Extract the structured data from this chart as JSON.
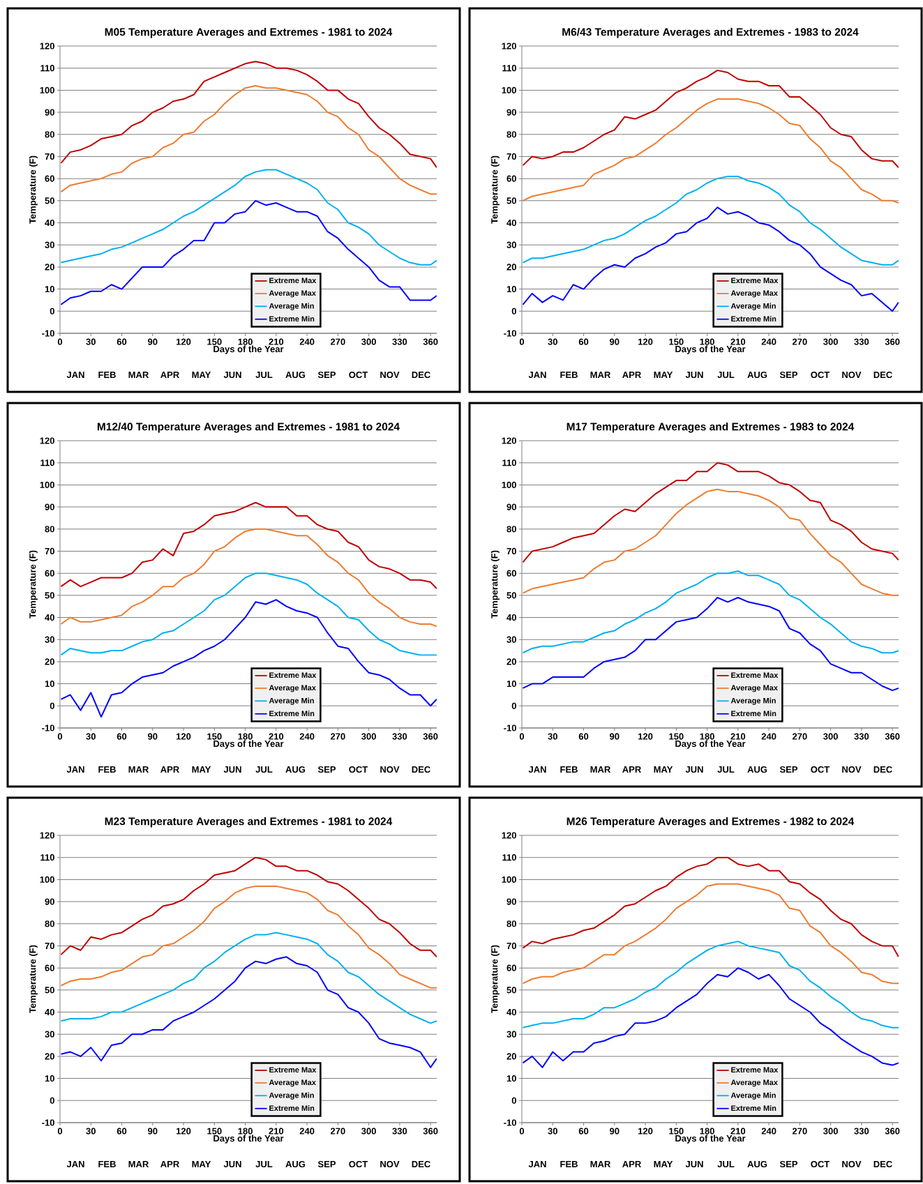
{
  "chart_data": [
    {
      "type": "line",
      "title": "M05 Temperature Averages and Extremes - 1981 to 2024",
      "xlabel": "Days of the Year",
      "ylabel": "Temperature (F)",
      "x": [
        1,
        10,
        20,
        30,
        40,
        50,
        60,
        70,
        80,
        90,
        100,
        110,
        120,
        130,
        140,
        150,
        160,
        170,
        180,
        190,
        200,
        210,
        220,
        230,
        240,
        250,
        260,
        270,
        280,
        290,
        300,
        310,
        320,
        330,
        340,
        350,
        360,
        366
      ],
      "series": [
        {
          "name": "Extreme Max",
          "color": "#c00000",
          "values": [
            67,
            72,
            73,
            75,
            78,
            79,
            80,
            84,
            86,
            90,
            92,
            95,
            96,
            98,
            104,
            106,
            108,
            110,
            112,
            113,
            112,
            110,
            110,
            109,
            107,
            104,
            100,
            100,
            96,
            94,
            88,
            83,
            80,
            76,
            71,
            70,
            69,
            65
          ]
        },
        {
          "name": "Average Max",
          "color": "#ed7d31",
          "values": [
            54,
            57,
            58,
            59,
            60,
            62,
            63,
            67,
            69,
            70,
            74,
            76,
            80,
            81,
            86,
            89,
            94,
            98,
            101,
            102,
            101,
            101,
            100,
            99,
            98,
            95,
            90,
            88,
            83,
            80,
            73,
            70,
            65,
            60,
            57,
            55,
            53,
            53
          ]
        },
        {
          "name": "Average Min",
          "color": "#00b0f0",
          "values": [
            22,
            23,
            24,
            25,
            26,
            28,
            29,
            31,
            33,
            35,
            37,
            40,
            43,
            45,
            48,
            51,
            54,
            57,
            61,
            63,
            64,
            64,
            62,
            60,
            58,
            55,
            49,
            46,
            40,
            38,
            35,
            30,
            27,
            24,
            22,
            21,
            21,
            23
          ]
        },
        {
          "name": "Extreme Min",
          "color": "#0000ff",
          "values": [
            3,
            6,
            7,
            9,
            9,
            12,
            10,
            15,
            20,
            20,
            20,
            25,
            28,
            32,
            32,
            40,
            40,
            44,
            45,
            50,
            48,
            49,
            47,
            45,
            45,
            43,
            36,
            33,
            28,
            24,
            20,
            14,
            11,
            11,
            5,
            5,
            5,
            7
          ]
        }
      ],
      "xlim": [
        0,
        366
      ],
      "xticks": [
        0,
        30,
        60,
        90,
        120,
        150,
        180,
        210,
        240,
        270,
        300,
        330,
        360
      ],
      "ylim": [
        -10,
        120
      ],
      "yticks": [
        -10,
        0,
        10,
        20,
        30,
        40,
        50,
        60,
        70,
        80,
        90,
        100,
        110,
        120
      ],
      "annotations": [
        "JAN",
        "FEB",
        "MAR",
        "APR",
        "MAY",
        "JUN",
        "JUL",
        "AUG",
        "SEP",
        "OCT",
        "NOV",
        "DEC"
      ],
      "grid": "y",
      "legend": "bottom",
      "line_style": "solid"
    },
    {
      "type": "line",
      "title": "M6/43 Temperature Averages and Extremes - 1983 to 2024",
      "xlabel": "Days of the Year",
      "ylabel": "Temperature (F)",
      "x": [
        1,
        10,
        20,
        30,
        40,
        50,
        60,
        70,
        80,
        90,
        100,
        110,
        120,
        130,
        140,
        150,
        160,
        170,
        180,
        190,
        200,
        210,
        220,
        230,
        240,
        250,
        260,
        270,
        280,
        290,
        300,
        310,
        320,
        330,
        340,
        350,
        360,
        366
      ],
      "series": [
        {
          "name": "Extreme Max",
          "color": "#c00000",
          "values": [
            66,
            70,
            69,
            70,
            72,
            72,
            74,
            77,
            80,
            82,
            88,
            87,
            89,
            91,
            95,
            99,
            101,
            104,
            106,
            109,
            108,
            105,
            104,
            104,
            102,
            102,
            97,
            97,
            93,
            89,
            83,
            80,
            79,
            73,
            69,
            68,
            68,
            65
          ]
        },
        {
          "name": "Average Max",
          "color": "#ed7d31",
          "values": [
            50,
            52,
            53,
            54,
            55,
            56,
            57,
            62,
            64,
            66,
            69,
            70,
            73,
            76,
            80,
            83,
            87,
            91,
            94,
            96,
            96,
            96,
            95,
            94,
            92,
            89,
            85,
            84,
            78,
            74,
            68,
            65,
            60,
            55,
            53,
            50,
            50,
            49
          ]
        },
        {
          "name": "Average Min",
          "color": "#00b0f0",
          "values": [
            22,
            24,
            24,
            25,
            26,
            27,
            28,
            30,
            32,
            33,
            35,
            38,
            41,
            43,
            46,
            49,
            53,
            55,
            58,
            60,
            61,
            61,
            59,
            58,
            56,
            53,
            48,
            45,
            40,
            37,
            33,
            29,
            26,
            23,
            22,
            21,
            21,
            23
          ]
        },
        {
          "name": "Extreme Min",
          "color": "#0000ff",
          "values": [
            3,
            8,
            4,
            7,
            5,
            12,
            10,
            15,
            19,
            21,
            20,
            24,
            26,
            29,
            31,
            35,
            36,
            40,
            42,
            47,
            44,
            45,
            43,
            40,
            39,
            36,
            32,
            30,
            26,
            20,
            17,
            14,
            12,
            7,
            8,
            4,
            0,
            4
          ]
        }
      ],
      "xlim": [
        0,
        366
      ],
      "xticks": [
        0,
        30,
        60,
        90,
        120,
        150,
        180,
        210,
        240,
        270,
        300,
        330,
        360
      ],
      "ylim": [
        -10,
        120
      ],
      "yticks": [
        -10,
        0,
        10,
        20,
        30,
        40,
        50,
        60,
        70,
        80,
        90,
        100,
        110,
        120
      ],
      "annotations": [
        "JAN",
        "FEB",
        "MAR",
        "APR",
        "MAY",
        "JUN",
        "JUL",
        "AUG",
        "SEP",
        "OCT",
        "NOV",
        "DEC"
      ],
      "grid": "y",
      "legend": "bottom",
      "line_style": "solid"
    },
    {
      "type": "line",
      "title": "M12/40 Temperature Averages and Extremes - 1981 to 2024",
      "xlabel": "Days of the Year",
      "ylabel": "Temperature (F)",
      "x": [
        1,
        10,
        20,
        30,
        40,
        50,
        60,
        70,
        80,
        90,
        100,
        110,
        120,
        130,
        140,
        150,
        160,
        170,
        180,
        190,
        200,
        210,
        220,
        230,
        240,
        250,
        260,
        270,
        280,
        290,
        300,
        310,
        320,
        330,
        340,
        350,
        360,
        366
      ],
      "series": [
        {
          "name": "Extreme Max",
          "color": "#c00000",
          "values": [
            54,
            57,
            54,
            56,
            58,
            58,
            58,
            60,
            65,
            66,
            71,
            68,
            78,
            79,
            82,
            86,
            87,
            88,
            90,
            92,
            90,
            90,
            90,
            86,
            86,
            82,
            80,
            79,
            74,
            72,
            66,
            63,
            62,
            60,
            57,
            57,
            56,
            53
          ]
        },
        {
          "name": "Average Max",
          "color": "#ed7d31",
          "values": [
            37,
            40,
            38,
            38,
            39,
            40,
            41,
            45,
            47,
            50,
            54,
            54,
            58,
            60,
            64,
            70,
            72,
            76,
            79,
            80,
            80,
            79,
            78,
            77,
            77,
            73,
            68,
            65,
            60,
            57,
            51,
            47,
            44,
            40,
            38,
            37,
            37,
            36
          ]
        },
        {
          "name": "Average Min",
          "color": "#00b0f0",
          "values": [
            23,
            26,
            25,
            24,
            24,
            25,
            25,
            27,
            29,
            30,
            33,
            34,
            37,
            40,
            43,
            48,
            50,
            54,
            58,
            60,
            60,
            59,
            58,
            57,
            55,
            51,
            48,
            45,
            40,
            39,
            34,
            30,
            28,
            25,
            24,
            23,
            23,
            23
          ]
        },
        {
          "name": "Extreme Min",
          "color": "#0000ff",
          "values": [
            3,
            5,
            -2,
            6,
            -5,
            5,
            6,
            10,
            13,
            14,
            15,
            18,
            20,
            22,
            25,
            27,
            30,
            35,
            40,
            47,
            46,
            48,
            45,
            43,
            42,
            40,
            33,
            27,
            26,
            20,
            15,
            14,
            12,
            8,
            5,
            5,
            0,
            3
          ]
        }
      ],
      "xlim": [
        0,
        366
      ],
      "xticks": [
        0,
        30,
        60,
        90,
        120,
        150,
        180,
        210,
        240,
        270,
        300,
        330,
        360
      ],
      "ylim": [
        -10,
        120
      ],
      "yticks": [
        -10,
        0,
        10,
        20,
        30,
        40,
        50,
        60,
        70,
        80,
        90,
        100,
        110,
        120
      ],
      "annotations": [
        "JAN",
        "FEB",
        "MAR",
        "APR",
        "MAY",
        "JUN",
        "JUL",
        "AUG",
        "SEP",
        "OCT",
        "NOV",
        "DEC"
      ],
      "grid": "y",
      "legend": "bottom",
      "line_style": "solid"
    },
    {
      "type": "line",
      "title": "M17 Temperature Averages and Extremes - 1983 to 2024",
      "xlabel": "Days of the Year",
      "ylabel": "Temperature (F)",
      "x": [
        1,
        10,
        20,
        30,
        40,
        50,
        60,
        70,
        80,
        90,
        100,
        110,
        120,
        130,
        140,
        150,
        160,
        170,
        180,
        190,
        200,
        210,
        220,
        230,
        240,
        250,
        260,
        270,
        280,
        290,
        300,
        310,
        320,
        330,
        340,
        350,
        360,
        366
      ],
      "series": [
        {
          "name": "Extreme Max",
          "color": "#c00000",
          "values": [
            65,
            70,
            71,
            72,
            74,
            76,
            77,
            78,
            82,
            86,
            89,
            88,
            92,
            96,
            99,
            102,
            102,
            106,
            106,
            110,
            109,
            106,
            106,
            106,
            104,
            101,
            100,
            97,
            93,
            92,
            84,
            82,
            79,
            74,
            71,
            70,
            69,
            66
          ]
        },
        {
          "name": "Average Max",
          "color": "#ed7d31",
          "values": [
            51,
            53,
            54,
            55,
            56,
            57,
            58,
            62,
            65,
            66,
            70,
            71,
            74,
            77,
            82,
            87,
            91,
            94,
            97,
            98,
            97,
            97,
            96,
            95,
            93,
            90,
            85,
            84,
            78,
            73,
            68,
            65,
            60,
            55,
            53,
            51,
            50,
            50
          ]
        },
        {
          "name": "Average Min",
          "color": "#00b0f0",
          "values": [
            24,
            26,
            27,
            27,
            28,
            29,
            29,
            31,
            33,
            34,
            37,
            39,
            42,
            44,
            47,
            51,
            53,
            55,
            58,
            60,
            60,
            61,
            59,
            59,
            57,
            55,
            50,
            48,
            44,
            40,
            37,
            33,
            29,
            27,
            26,
            24,
            24,
            25
          ]
        },
        {
          "name": "Extreme Min",
          "color": "#0000ff",
          "values": [
            8,
            10,
            10,
            13,
            13,
            13,
            13,
            17,
            20,
            21,
            22,
            25,
            30,
            30,
            34,
            38,
            39,
            40,
            44,
            49,
            47,
            49,
            47,
            46,
            45,
            43,
            35,
            33,
            28,
            25,
            19,
            17,
            15,
            15,
            12,
            9,
            7,
            8
          ]
        }
      ],
      "xlim": [
        0,
        366
      ],
      "xticks": [
        0,
        30,
        60,
        90,
        120,
        150,
        180,
        210,
        240,
        270,
        300,
        330,
        360
      ],
      "ylim": [
        -10,
        120
      ],
      "yticks": [
        -10,
        0,
        10,
        20,
        30,
        40,
        50,
        60,
        70,
        80,
        90,
        100,
        110,
        120
      ],
      "annotations": [
        "JAN",
        "FEB",
        "MAR",
        "APR",
        "MAY",
        "JUN",
        "JUL",
        "AUG",
        "SEP",
        "OCT",
        "NOV",
        "DEC"
      ],
      "grid": "y",
      "legend": "bottom",
      "line_style": "solid"
    },
    {
      "type": "line",
      "title": "M23 Temperature Averages and Extremes - 1981 to 2024",
      "xlabel": "Days of the Year",
      "ylabel": "Temperature (F)",
      "x": [
        1,
        10,
        20,
        30,
        40,
        50,
        60,
        70,
        80,
        90,
        100,
        110,
        120,
        130,
        140,
        150,
        160,
        170,
        180,
        190,
        200,
        210,
        220,
        230,
        240,
        250,
        260,
        270,
        280,
        290,
        300,
        310,
        320,
        330,
        340,
        350,
        360,
        366
      ],
      "series": [
        {
          "name": "Extreme Max",
          "color": "#c00000",
          "values": [
            66,
            70,
            68,
            74,
            73,
            75,
            76,
            79,
            82,
            84,
            88,
            89,
            91,
            95,
            98,
            102,
            103,
            104,
            107,
            110,
            109,
            106,
            106,
            104,
            104,
            102,
            99,
            98,
            95,
            91,
            87,
            82,
            80,
            76,
            71,
            68,
            68,
            65
          ]
        },
        {
          "name": "Average Max",
          "color": "#ed7d31",
          "values": [
            52,
            54,
            55,
            55,
            56,
            58,
            59,
            62,
            65,
            66,
            70,
            71,
            74,
            77,
            81,
            87,
            90,
            94,
            96,
            97,
            97,
            97,
            96,
            95,
            94,
            91,
            86,
            84,
            79,
            75,
            69,
            66,
            62,
            57,
            55,
            53,
            51,
            51
          ]
        },
        {
          "name": "Average Min",
          "color": "#00b0f0",
          "values": [
            36,
            37,
            37,
            37,
            38,
            40,
            40,
            42,
            44,
            46,
            48,
            50,
            53,
            55,
            60,
            63,
            67,
            70,
            73,
            75,
            75,
            76,
            75,
            74,
            73,
            71,
            66,
            63,
            58,
            56,
            52,
            48,
            45,
            42,
            39,
            37,
            35,
            36
          ]
        },
        {
          "name": "Extreme Min",
          "color": "#0000ff",
          "values": [
            21,
            22,
            20,
            24,
            18,
            25,
            26,
            30,
            30,
            32,
            32,
            36,
            38,
            40,
            43,
            46,
            50,
            54,
            60,
            63,
            62,
            64,
            65,
            62,
            61,
            58,
            50,
            48,
            42,
            40,
            35,
            28,
            26,
            25,
            24,
            22,
            15,
            19
          ]
        }
      ],
      "xlim": [
        0,
        366
      ],
      "xticks": [
        0,
        30,
        60,
        90,
        120,
        150,
        180,
        210,
        240,
        270,
        300,
        330,
        360
      ],
      "ylim": [
        -10,
        120
      ],
      "yticks": [
        -10,
        0,
        10,
        20,
        30,
        40,
        50,
        60,
        70,
        80,
        90,
        100,
        110,
        120
      ],
      "annotations": [
        "JAN",
        "FEB",
        "MAR",
        "APR",
        "MAY",
        "JUN",
        "JUL",
        "AUG",
        "SEP",
        "OCT",
        "NOV",
        "DEC"
      ],
      "grid": "y",
      "legend": "bottom",
      "line_style": "solid"
    },
    {
      "type": "line",
      "title": "M26 Temperature Averages and Extremes - 1982 to 2024",
      "xlabel": "Days of the Year",
      "ylabel": "Temperature (F)",
      "x": [
        1,
        10,
        20,
        30,
        40,
        50,
        60,
        70,
        80,
        90,
        100,
        110,
        120,
        130,
        140,
        150,
        160,
        170,
        180,
        190,
        200,
        210,
        220,
        230,
        240,
        250,
        260,
        270,
        280,
        290,
        300,
        310,
        320,
        330,
        340,
        350,
        360,
        366
      ],
      "series": [
        {
          "name": "Extreme Max",
          "color": "#c00000",
          "values": [
            69,
            72,
            71,
            73,
            74,
            75,
            77,
            78,
            81,
            84,
            88,
            89,
            92,
            95,
            97,
            101,
            104,
            106,
            107,
            110,
            110,
            107,
            106,
            107,
            104,
            104,
            99,
            98,
            94,
            91,
            86,
            82,
            80,
            75,
            72,
            70,
            70,
            65
          ]
        },
        {
          "name": "Average Max",
          "color": "#ed7d31",
          "values": [
            53,
            55,
            56,
            56,
            58,
            59,
            60,
            63,
            66,
            66,
            70,
            72,
            75,
            78,
            82,
            87,
            90,
            93,
            97,
            98,
            98,
            98,
            97,
            96,
            95,
            93,
            87,
            86,
            79,
            76,
            70,
            67,
            63,
            58,
            57,
            54,
            53,
            53
          ]
        },
        {
          "name": "Average Min",
          "color": "#00b0f0",
          "values": [
            33,
            34,
            35,
            35,
            36,
            37,
            37,
            39,
            42,
            42,
            44,
            46,
            49,
            51,
            55,
            58,
            62,
            65,
            68,
            70,
            71,
            72,
            70,
            69,
            68,
            67,
            61,
            59,
            54,
            51,
            47,
            44,
            40,
            37,
            36,
            34,
            33,
            33
          ]
        },
        {
          "name": "Extreme Min",
          "color": "#0000ff",
          "values": [
            17,
            20,
            15,
            22,
            18,
            22,
            22,
            26,
            27,
            29,
            30,
            35,
            35,
            36,
            38,
            42,
            45,
            48,
            53,
            57,
            56,
            60,
            58,
            55,
            57,
            52,
            46,
            43,
            40,
            35,
            32,
            28,
            25,
            22,
            20,
            17,
            16,
            17
          ]
        }
      ],
      "xlim": [
        0,
        366
      ],
      "xticks": [
        0,
        30,
        60,
        90,
        120,
        150,
        180,
        210,
        240,
        270,
        300,
        330,
        360
      ],
      "ylim": [
        -10,
        120
      ],
      "yticks": [
        -10,
        0,
        10,
        20,
        30,
        40,
        50,
        60,
        70,
        80,
        90,
        100,
        110,
        120
      ],
      "annotations": [
        "JAN",
        "FEB",
        "MAR",
        "APR",
        "MAY",
        "JUN",
        "JUL",
        "AUG",
        "SEP",
        "OCT",
        "NOV",
        "DEC"
      ],
      "grid": "y",
      "legend": "bottom",
      "line_style": "solid"
    }
  ]
}
